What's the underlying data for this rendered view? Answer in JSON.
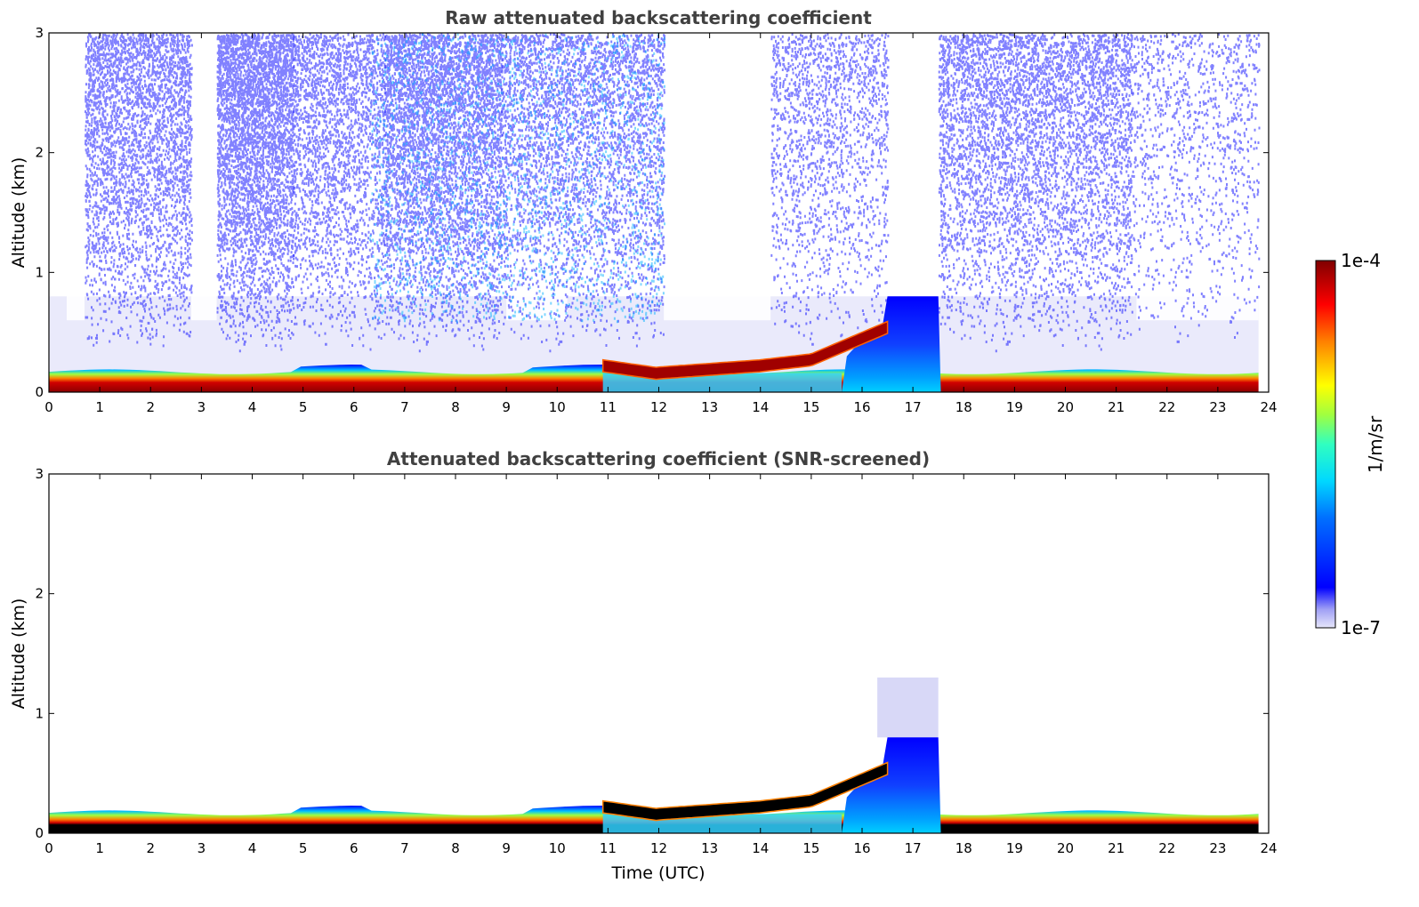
{
  "chart_data": [
    {
      "type": "heatmap",
      "title": "Raw attenuated backscattering coefficient",
      "xlabel": "",
      "ylabel": "Altitude (km)",
      "xlim": [
        0,
        24
      ],
      "ylim": [
        0,
        3
      ],
      "xticks": [
        "0",
        "1",
        "2",
        "3",
        "4",
        "5",
        "6",
        "7",
        "8",
        "9",
        "10",
        "11",
        "12",
        "13",
        "14",
        "15",
        "16",
        "17",
        "18",
        "19",
        "20",
        "21",
        "22",
        "23",
        "24"
      ],
      "yticks": [
        "0",
        "1",
        "2",
        "3"
      ],
      "layers": [
        {
          "feature": "boundary layer aerosol",
          "time_range": [
            0,
            23.8
          ],
          "altitude_km": [
            0,
            0.2
          ]
        },
        {
          "feature": "rising aerosol layer",
          "time_range": [
            10.9,
            16.5
          ],
          "altitude_km": [
            0.15,
            0.5
          ]
        },
        {
          "feature": "low cloud / fog",
          "time_range": [
            16.5,
            17.5
          ],
          "altitude_km": [
            0,
            0.8
          ]
        },
        {
          "feature": "noise",
          "time_range": [
            0,
            23.8
          ],
          "altitude_km": [
            0.5,
            3
          ]
        }
      ]
    },
    {
      "type": "heatmap",
      "title": "Attenuated backscattering coefficient (SNR-screened)",
      "xlabel": "Time (UTC)",
      "ylabel": "Altitude (km)",
      "xlim": [
        0,
        24
      ],
      "ylim": [
        0,
        3
      ],
      "xticks": [
        "0",
        "1",
        "2",
        "3",
        "4",
        "5",
        "6",
        "7",
        "8",
        "9",
        "10",
        "11",
        "12",
        "13",
        "14",
        "15",
        "16",
        "17",
        "18",
        "19",
        "20",
        "21",
        "22",
        "23",
        "24"
      ],
      "yticks": [
        "0",
        "1",
        "2",
        "3"
      ],
      "layers": [
        {
          "feature": "boundary layer aerosol",
          "time_range": [
            0,
            23.8
          ],
          "altitude_km": [
            0,
            0.2
          ]
        },
        {
          "feature": "rising aerosol layer",
          "time_range": [
            10.9,
            16.5
          ],
          "altitude_km": [
            0.15,
            0.5
          ]
        },
        {
          "feature": "low cloud / fog",
          "time_range": [
            16.5,
            17.5
          ],
          "altitude_km": [
            0,
            1.3
          ]
        }
      ]
    }
  ],
  "colorbar": {
    "label": "1/m/sr",
    "max_label": "1e-4",
    "min_label": "1e-7",
    "colors": [
      "#e6e6fa",
      "#0000ff",
      "#00ffff",
      "#ffff00",
      "#ff0000",
      "#8b0000"
    ]
  }
}
